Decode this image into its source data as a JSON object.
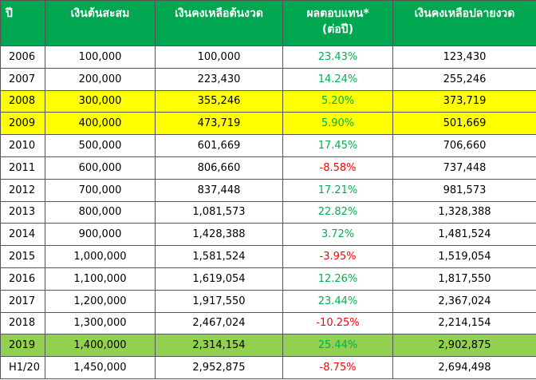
{
  "table": {
    "header": [
      [
        "ปี"
      ],
      [
        "เงินต้นสะสม"
      ],
      [
        "เงินคงเหลือต้นงวด"
      ],
      [
        "ผลตอบแทน*",
        "(ต่อปี)"
      ],
      [
        "เงินคงเหลือปลายงวด"
      ]
    ],
    "header_color": "#00a650",
    "positive_color": "#00b050",
    "negative_color": "#ff0000",
    "rows": [
      {
        "cells": [
          "2006",
          "100,000",
          "100,000",
          "23.43%",
          "123,430"
        ]
      },
      {
        "cells": [
          "2007",
          "200,000",
          "223,430",
          "14.24%",
          "255,246"
        ]
      },
      {
        "cells": [
          "2008",
          "300,000",
          "355,246",
          "5.20%",
          "373,719"
        ],
        "fill": "#ffff00"
      },
      {
        "cells": [
          "2009",
          "400,000",
          "473,719",
          "5.90%",
          "501,669"
        ],
        "fill": "#ffff00"
      },
      {
        "cells": [
          "2010",
          "500,000",
          "601,669",
          "17.45%",
          "706,660"
        ]
      },
      {
        "cells": [
          "2011",
          "600,000",
          "806,660",
          "-8.58%",
          "737,448"
        ]
      },
      {
        "cells": [
          "2012",
          "700,000",
          "837,448",
          "17.21%",
          "981,573"
        ]
      },
      {
        "cells": [
          "2013",
          "800,000",
          "1,081,573",
          "22.82%",
          "1,328,388"
        ]
      },
      {
        "cells": [
          "2014",
          "900,000",
          "1,428,388",
          "3.72%",
          "1,481,524"
        ]
      },
      {
        "cells": [
          "2015",
          "1,000,000",
          "1,581,524",
          "-3.95%",
          "1,519,054"
        ]
      },
      {
        "cells": [
          "2016",
          "1,100,000",
          "1,619,054",
          "12.26%",
          "1,817,550"
        ]
      },
      {
        "cells": [
          "2017",
          "1,200,000",
          "1,917,550",
          "23.44%",
          "2,367,024"
        ]
      },
      {
        "cells": [
          "2018",
          "1,300,000",
          "2,467,024",
          "-10.25%",
          "2,214,154"
        ]
      },
      {
        "cells": [
          "2019",
          "1,400,000",
          "2,314,154",
          "25.44%",
          "2,902,875"
        ],
        "fill": "#92d050"
      },
      {
        "cells": [
          "H1/20",
          "1,450,000",
          "2,952,875",
          "-8.75%",
          "2,694,498"
        ]
      }
    ]
  }
}
